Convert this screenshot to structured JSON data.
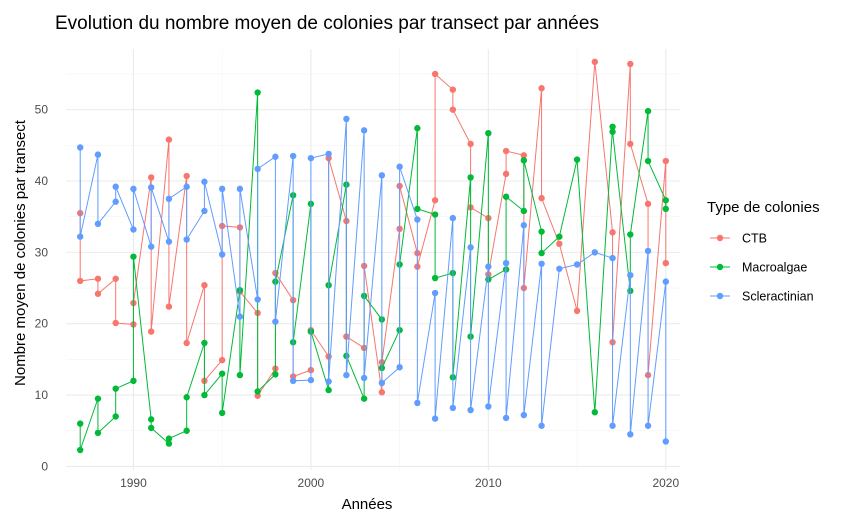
{
  "chart_data": {
    "type": "line",
    "title": "Evolution du nombre moyen de colonies par transect par années",
    "xlabel": "Années",
    "ylabel": "Nombre moyen de colonies par transect",
    "xlim": [
      1986.2,
      2020.8
    ],
    "ylim": [
      -0.5,
      58.5
    ],
    "x_ticks": [
      1990,
      2000,
      2010,
      2020
    ],
    "y_ticks": [
      0,
      10,
      20,
      30,
      40,
      50
    ],
    "grid": true,
    "legend_title": "Type de colonies",
    "legend_position": "right",
    "series": [
      {
        "name": "CTB",
        "color": "#F8766D",
        "points": [
          [
            1987,
            35.5
          ],
          [
            1987,
            26
          ],
          [
            1988,
            26.3
          ],
          [
            1988,
            24.2
          ],
          [
            1989,
            26.3
          ],
          [
            1989,
            20.1
          ],
          [
            1990,
            19.9
          ],
          [
            1990,
            22.9
          ],
          [
            1991,
            40.5
          ],
          [
            1991,
            18.9
          ],
          [
            1992,
            45.8
          ],
          [
            1992,
            22.4
          ],
          [
            1993,
            40.7
          ],
          [
            1993,
            17.3
          ],
          [
            1994,
            25.4
          ],
          [
            1994,
            12
          ],
          [
            1995,
            14.9
          ],
          [
            1995,
            33.7
          ],
          [
            1996,
            33.5
          ],
          [
            1996,
            24.5
          ],
          [
            1997,
            21.5
          ],
          [
            1997,
            9.9
          ],
          [
            1998,
            13.7
          ],
          [
            1998,
            27.1
          ],
          [
            1999,
            23.3
          ],
          [
            1999,
            12.6
          ],
          [
            2000,
            13.5
          ],
          [
            2000,
            19.1
          ],
          [
            2001,
            15.4
          ],
          [
            2001,
            43.2
          ],
          [
            2002,
            34.4
          ],
          [
            2002,
            18.2
          ],
          [
            2003,
            16.6
          ],
          [
            2003,
            28.1
          ],
          [
            2004,
            10.4
          ],
          [
            2004,
            14.6
          ],
          [
            2005,
            33.3
          ],
          [
            2005,
            39.3
          ],
          [
            2006,
            29.9
          ],
          [
            2006,
            28
          ],
          [
            2007,
            37.3
          ],
          [
            2007,
            55
          ],
          [
            2008,
            52.8
          ],
          [
            2008,
            50
          ],
          [
            2009,
            45.2
          ],
          [
            2009,
            36.3
          ],
          [
            2010,
            34.8
          ],
          [
            2010,
            26.9
          ],
          [
            2011,
            41
          ],
          [
            2011,
            44.2
          ],
          [
            2012,
            43.6
          ],
          [
            2012,
            25
          ],
          [
            2013,
            53
          ],
          [
            2013,
            37.6
          ],
          [
            2014,
            31.2
          ],
          [
            2015,
            21.8
          ],
          [
            2016,
            56.7
          ],
          [
            2017,
            32.8
          ],
          [
            2017,
            17.4
          ],
          [
            2018,
            56.4
          ],
          [
            2018,
            45.2
          ],
          [
            2019,
            36.8
          ],
          [
            2019,
            12.8
          ],
          [
            2020,
            42.8
          ],
          [
            2020,
            28.5
          ]
        ]
      },
      {
        "name": "Macroalgae",
        "color": "#00BA38",
        "points": [
          [
            1987,
            6
          ],
          [
            1987,
            2.3
          ],
          [
            1988,
            9.5
          ],
          [
            1988,
            4.7
          ],
          [
            1989,
            7
          ],
          [
            1989,
            10.9
          ],
          [
            1990,
            12
          ],
          [
            1990,
            29.4
          ],
          [
            1991,
            6.6
          ],
          [
            1991,
            5.4
          ],
          [
            1992,
            3.2
          ],
          [
            1992,
            3.9
          ],
          [
            1993,
            5
          ],
          [
            1993,
            9.7
          ],
          [
            1994,
            17.3
          ],
          [
            1994,
            10
          ],
          [
            1995,
            13
          ],
          [
            1995,
            7.5
          ],
          [
            1996,
            24.7
          ],
          [
            1996,
            12.8
          ],
          [
            1997,
            52.4
          ],
          [
            1997,
            10.5
          ],
          [
            1998,
            12.9
          ],
          [
            1998,
            25.9
          ],
          [
            1999,
            38
          ],
          [
            1999,
            17.4
          ],
          [
            2000,
            36.8
          ],
          [
            2000,
            18.9
          ],
          [
            2001,
            10.7
          ],
          [
            2001,
            25.4
          ],
          [
            2002,
            39.5
          ],
          [
            2002,
            15.5
          ],
          [
            2003,
            9.5
          ],
          [
            2003,
            23.9
          ],
          [
            2004,
            20.6
          ],
          [
            2004,
            13.8
          ],
          [
            2005,
            19.1
          ],
          [
            2005,
            28.3
          ],
          [
            2006,
            47.4
          ],
          [
            2006,
            36.1
          ],
          [
            2007,
            35.3
          ],
          [
            2007,
            26.4
          ],
          [
            2008,
            27.1
          ],
          [
            2008,
            12.5
          ],
          [
            2009,
            40.5
          ],
          [
            2009,
            18.2
          ],
          [
            2010,
            46.7
          ],
          [
            2010,
            26.2
          ],
          [
            2011,
            27.6
          ],
          [
            2011,
            37.8
          ],
          [
            2012,
            35.8
          ],
          [
            2012,
            42.9
          ],
          [
            2013,
            32.9
          ],
          [
            2013,
            29.9
          ],
          [
            2014,
            32.2
          ],
          [
            2015,
            43
          ],
          [
            2016,
            7.6
          ],
          [
            2017,
            47.6
          ],
          [
            2017,
            46.9
          ],
          [
            2018,
            24.6
          ],
          [
            2018,
            32.5
          ],
          [
            2019,
            49.8
          ],
          [
            2019,
            42.8
          ],
          [
            2020,
            37.3
          ],
          [
            2020,
            36.1
          ]
        ]
      },
      {
        "name": "Scleractinian",
        "color": "#619CFF",
        "points": [
          [
            1987,
            44.7
          ],
          [
            1987,
            32.2
          ],
          [
            1988,
            43.7
          ],
          [
            1988,
            34
          ],
          [
            1989,
            37.1
          ],
          [
            1989,
            39.2
          ],
          [
            1990,
            33.2
          ],
          [
            1990,
            38.9
          ],
          [
            1991,
            30.8
          ],
          [
            1991,
            39.1
          ],
          [
            1992,
            31.5
          ],
          [
            1992,
            37.5
          ],
          [
            1993,
            39.2
          ],
          [
            1993,
            31.8
          ],
          [
            1994,
            35.8
          ],
          [
            1994,
            39.9
          ],
          [
            1995,
            29.7
          ],
          [
            1995,
            38.9
          ],
          [
            1996,
            21
          ],
          [
            1996,
            38.9
          ],
          [
            1997,
            23.4
          ],
          [
            1997,
            41.7
          ],
          [
            1998,
            43.4
          ],
          [
            1998,
            20.3
          ],
          [
            1999,
            43.5
          ],
          [
            1999,
            12
          ],
          [
            2000,
            12.1
          ],
          [
            2000,
            43.2
          ],
          [
            2001,
            43.8
          ],
          [
            2001,
            11.9
          ],
          [
            2002,
            48.7
          ],
          [
            2002,
            12.8
          ],
          [
            2003,
            47.1
          ],
          [
            2003,
            12.4
          ],
          [
            2004,
            40.8
          ],
          [
            2004,
            11.7
          ],
          [
            2005,
            13.9
          ],
          [
            2005,
            42
          ],
          [
            2006,
            34.6
          ],
          [
            2006,
            8.9
          ],
          [
            2007,
            24.3
          ],
          [
            2007,
            6.7
          ],
          [
            2008,
            34.8
          ],
          [
            2008,
            8.2
          ],
          [
            2009,
            30.7
          ],
          [
            2009,
            7.9
          ],
          [
            2010,
            28
          ],
          [
            2010,
            8.4
          ],
          [
            2011,
            28.5
          ],
          [
            2011,
            6.8
          ],
          [
            2012,
            33.8
          ],
          [
            2012,
            7.2
          ],
          [
            2013,
            28.4
          ],
          [
            2013,
            5.7
          ],
          [
            2014,
            27.7
          ],
          [
            2015,
            28.3
          ],
          [
            2016,
            30
          ],
          [
            2017,
            29.2
          ],
          [
            2017,
            5.7
          ],
          [
            2018,
            26.8
          ],
          [
            2018,
            4.5
          ],
          [
            2019,
            30.2
          ],
          [
            2019,
            5.7
          ],
          [
            2020,
            25.9
          ],
          [
            2020,
            3.5
          ]
        ]
      }
    ]
  }
}
